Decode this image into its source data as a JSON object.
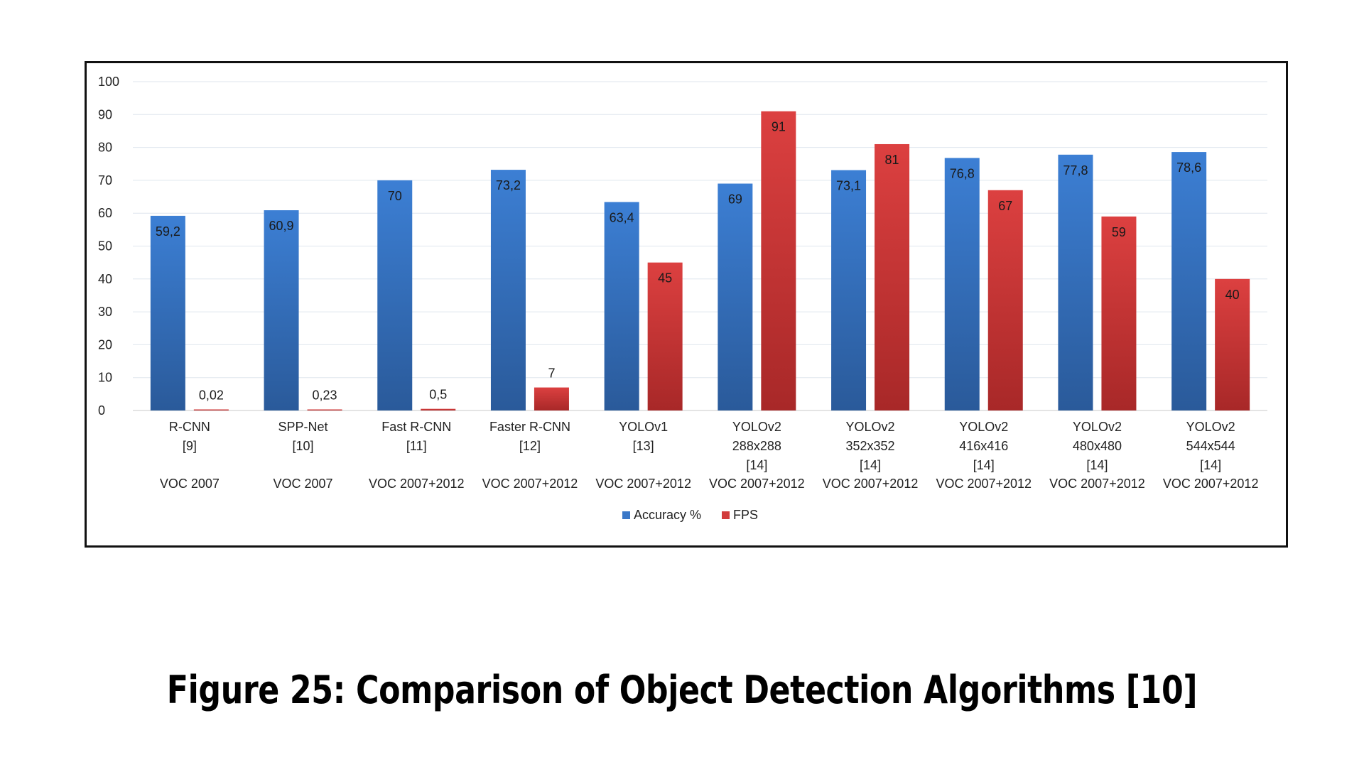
{
  "caption": "Figure 25: Comparison of Object Detection Algorithms [10]",
  "chart_data": {
    "type": "bar",
    "categories": [
      [
        "R-CNN",
        "[9]",
        "",
        "VOC 2007"
      ],
      [
        "SPP-Net",
        "[10]",
        "",
        "VOC 2007"
      ],
      [
        "Fast R-CNN",
        "[11]",
        "",
        "VOC 2007+2012"
      ],
      [
        "Faster R-CNN",
        "[12]",
        "",
        "VOC 2007+2012"
      ],
      [
        "YOLOv1",
        "[13]",
        "",
        "VOC 2007+2012"
      ],
      [
        "YOLOv2",
        "288x288",
        "[14]",
        "VOC 2007+2012"
      ],
      [
        "YOLOv2",
        "352x352",
        "[14]",
        "VOC 2007+2012"
      ],
      [
        "YOLOv2",
        "416x416",
        "[14]",
        "VOC 2007+2012"
      ],
      [
        "YOLOv2",
        "480x480",
        "[14]",
        "VOC 2007+2012"
      ],
      [
        "YOLOv2",
        "544x544",
        "[14]",
        "VOC 2007+2012"
      ]
    ],
    "series": [
      {
        "name": "Accuracy %",
        "color": "#3a78c8",
        "values": [
          59.2,
          60.9,
          70,
          73.2,
          63.4,
          69,
          73.1,
          76.8,
          77.8,
          78.6
        ],
        "labels": [
          "59,2",
          "60,9",
          "70",
          "73,2",
          "63,4",
          "69",
          "73,1",
          "76,8",
          "77,8",
          "78,6"
        ]
      },
      {
        "name": "FPS",
        "color": "#d23c3c",
        "values": [
          0.02,
          0.23,
          0.5,
          7,
          45,
          91,
          81,
          67,
          59,
          40
        ],
        "labels": [
          "0,02",
          "0,23",
          "0,5",
          "7",
          "45",
          "91",
          "81",
          "67",
          "59",
          "40"
        ]
      }
    ],
    "yticks": [
      0,
      10,
      20,
      30,
      40,
      50,
      60,
      70,
      80,
      90,
      100
    ],
    "ylim": [
      0,
      100
    ],
    "grid": true,
    "legend_position": "bottom"
  }
}
